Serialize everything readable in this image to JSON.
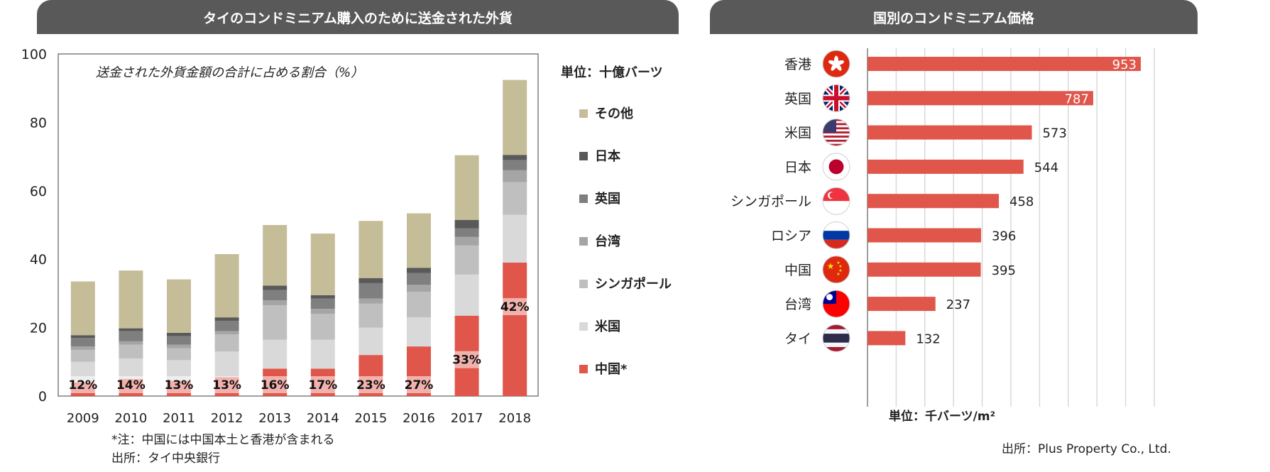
{
  "headers": {
    "left": "タイのコンドミニアム購入のために送金された外貨",
    "right": "国別のコンドミニアム価格"
  },
  "left_notes": {
    "note": "*注：中国には中国本土と香港が含まれる",
    "source": "出所：タイ中央銀行"
  },
  "right_notes": {
    "source": "出所：Plus Property Co., Ltd."
  },
  "colors": {
    "その他": "#c5bd98",
    "日本": "#595959",
    "英国": "#7f7f7f",
    "台湾": "#a5a5a5",
    "シンガポール": "#bfbfbf",
    "米国": "#d9d9d9",
    "中国*": "#e0564b",
    "bar_red": "#e0564b"
  },
  "chart_data": [
    {
      "type": "bar",
      "stacked": true,
      "title": "送金された外貨金額の合計に占める割合（%）",
      "unit_label": "単位：十億バーツ",
      "categories": [
        "2009",
        "2010",
        "2011",
        "2012",
        "2013",
        "2014",
        "2015",
        "2016",
        "2017",
        "2018"
      ],
      "ylim": [
        0,
        100
      ],
      "yticks": [
        0,
        20,
        40,
        60,
        80,
        100
      ],
      "legend_position": "right",
      "series": [
        {
          "name": "中国*",
          "values": [
            4.0,
            5.0,
            4.5,
            5.5,
            8.0,
            8.0,
            12.0,
            14.5,
            23.5,
            39.0
          ]
        },
        {
          "name": "米国",
          "values": [
            6.0,
            6.0,
            6.0,
            7.5,
            8.5,
            8.5,
            8.0,
            8.5,
            12.0,
            14.0
          ]
        },
        {
          "name": "シンガポール",
          "values": [
            3.5,
            4.0,
            3.5,
            5.0,
            10.0,
            7.5,
            7.0,
            7.5,
            8.5,
            9.5
          ]
        },
        {
          "name": "台湾",
          "values": [
            1.0,
            1.0,
            1.0,
            1.0,
            1.5,
            1.5,
            1.5,
            2.0,
            2.5,
            3.5
          ]
        },
        {
          "name": "英国",
          "values": [
            2.5,
            3.0,
            2.5,
            3.0,
            3.0,
            3.0,
            4.5,
            3.5,
            2.5,
            3.0
          ]
        },
        {
          "name": "日本",
          "values": [
            0.8,
            0.8,
            1.0,
            1.0,
            1.3,
            1.0,
            1.5,
            1.5,
            2.5,
            1.5
          ]
        },
        {
          "name": "その他",
          "values": [
            15.7,
            16.9,
            15.6,
            18.5,
            17.7,
            18.0,
            16.7,
            15.9,
            18.9,
            21.9
          ]
        }
      ],
      "percent_labels": [
        "12%",
        "14%",
        "13%",
        "13%",
        "16%",
        "17%",
        "23%",
        "27%",
        "33%",
        "42%"
      ],
      "grid": false
    },
    {
      "type": "bar",
      "orientation": "horizontal",
      "categories": [
        "香港",
        "英国",
        "米国",
        "日本",
        "シンガポール",
        "ロシア",
        "中国",
        "台湾",
        "タイ"
      ],
      "values": [
        953,
        787,
        573,
        544,
        458,
        396,
        395,
        237,
        132
      ],
      "xlabel": "単位：千バーツ/m²",
      "xlim": [
        0,
        1000
      ],
      "grid": true
    }
  ]
}
